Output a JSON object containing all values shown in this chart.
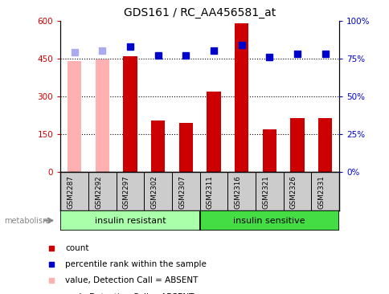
{
  "title": "GDS161 / RC_AA456581_at",
  "samples": [
    "GSM2287",
    "GSM2292",
    "GSM2297",
    "GSM2302",
    "GSM2307",
    "GSM2311",
    "GSM2316",
    "GSM2321",
    "GSM2326",
    "GSM2331"
  ],
  "bar_values": [
    440,
    445,
    460,
    205,
    195,
    320,
    590,
    170,
    215,
    215
  ],
  "bar_colors": [
    "#ffb0b0",
    "#ffb0b0",
    "#cc0000",
    "#cc0000",
    "#cc0000",
    "#cc0000",
    "#cc0000",
    "#cc0000",
    "#cc0000",
    "#cc0000"
  ],
  "rank_values": [
    79,
    80,
    83,
    77,
    77,
    80,
    84,
    76,
    78,
    78
  ],
  "rank_colors": [
    "#aaaaee",
    "#aaaaee",
    "#0000cc",
    "#0000cc",
    "#0000cc",
    "#0000cc",
    "#0000cc",
    "#0000cc",
    "#0000cc",
    "#0000cc"
  ],
  "ylim_left": [
    0,
    600
  ],
  "ylim_right": [
    0,
    100
  ],
  "yticks_left": [
    0,
    150,
    300,
    450,
    600
  ],
  "yticks_right": [
    0,
    25,
    50,
    75,
    100
  ],
  "ytick_labels_left": [
    "0",
    "150",
    "300",
    "450",
    "600"
  ],
  "ytick_labels_right": [
    "0%",
    "25%",
    "50%",
    "75%",
    "100%"
  ],
  "group1_label": "insulin resistant",
  "group2_label": "insulin sensitive",
  "group1_count": 5,
  "group2_count": 5,
  "metabolism_label": "metabolism",
  "legend_items": [
    {
      "label": "count",
      "color": "#cc0000"
    },
    {
      "label": "percentile rank within the sample",
      "color": "#0000cc"
    },
    {
      "label": "value, Detection Call = ABSENT",
      "color": "#ffb0b0"
    },
    {
      "label": "rank, Detection Call = ABSENT",
      "color": "#aaaaee"
    }
  ],
  "background_color": "#ffffff",
  "axis_label_color_left": "#cc0000",
  "axis_label_color_right": "#0000cc",
  "bar_width": 0.5,
  "rank_marker_size": 6,
  "group1_color": "#aaffaa",
  "group2_color": "#44dd44",
  "xlabels_bg": "#cccccc"
}
